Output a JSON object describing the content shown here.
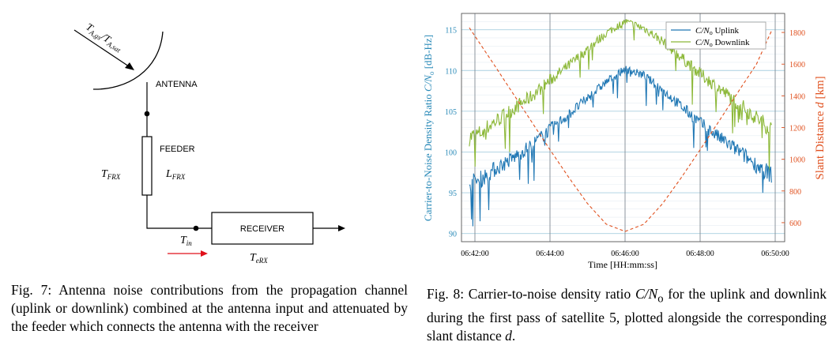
{
  "figure7": {
    "incoming_label": "T_{A,gs}/T_{A,sat}",
    "antenna_label": "ANTENNA",
    "feeder_label": "FEEDER",
    "t_frx_label": "T_{FRX}",
    "l_frx_label": "L_{FRX}",
    "receiver_label": "RECEIVER",
    "t_in_label": "T_{in}",
    "t_erx_label": "T_{eRX}",
    "caption": "Fig. 7: Antenna noise contributions from the propagation channel (uplink or downlink) combined at the antenna input and attenuated by the feeder which connects the antenna with the receiver"
  },
  "figure8": {
    "caption_prefix": "Fig. 8: Carrier-to-noise density ratio ",
    "caption_math": "C/N",
    "caption_sub": "o",
    "caption_middle": " for the uplink and downlink during the first pass of satellite 5, plotted alongside the corresponding slant distance ",
    "caption_d": "d",
    "caption_end": "."
  },
  "chart_data": {
    "type": "line",
    "xlabel": "Time [HH:mm:ss]",
    "ylabel_left": "Carrier-to-Noise Density Ratio C/N_o [dB-Hz]",
    "ylabel_right": "Slant Distance d [km]",
    "x_ticks": [
      "06:42:00",
      "06:44:00",
      "06:46:00",
      "06:48:00",
      "06:50:00"
    ],
    "x_range_min": [
      0,
      8
    ],
    "y_left_ticks": [
      90,
      95,
      100,
      105,
      110,
      115
    ],
    "y_left_range": [
      89,
      117
    ],
    "y_right_ticks": [
      600,
      800,
      1000,
      1200,
      1400,
      1600,
      1800
    ],
    "y_right_range": [
      480,
      1920
    ],
    "legend": [
      "C/N_o Uplink",
      "C/N_o Downlink"
    ],
    "colors": {
      "uplink": "#1f77b4",
      "downlink": "#8cb838",
      "distance": "#e0501e",
      "axis_right": "#e0501e",
      "axis_left": "#2a8ab8"
    },
    "series": [
      {
        "name": "C/N_o Uplink",
        "x_min": [
          -0.15,
          0.1,
          0.5,
          1.0,
          1.5,
          2.0,
          2.5,
          3.0,
          3.5,
          4.0,
          4.5,
          5.0,
          5.5,
          6.0,
          6.5,
          7.0,
          7.5,
          7.9
        ],
        "values": [
          96.2,
          96.5,
          97.8,
          99.2,
          100.8,
          102.8,
          104.6,
          106.6,
          108.6,
          110.2,
          109.4,
          107.6,
          105.6,
          103.6,
          101.8,
          100.2,
          98.4,
          97.2
        ]
      },
      {
        "name": "C/N_o Downlink",
        "x_min": [
          -0.15,
          0.1,
          0.5,
          1.0,
          1.5,
          2.0,
          2.5,
          3.0,
          3.5,
          4.0,
          4.5,
          5.0,
          5.5,
          6.0,
          6.5,
          7.0,
          7.5,
          7.9
        ],
        "values": [
          101.8,
          102.2,
          103.6,
          105.2,
          106.8,
          108.8,
          110.6,
          112.6,
          114.6,
          116.0,
          115.2,
          113.6,
          111.6,
          109.6,
          107.8,
          106.0,
          104.2,
          102.8
        ]
      },
      {
        "name": "Slant Distance",
        "x_min": [
          -0.15,
          0.5,
          1.0,
          1.5,
          2.0,
          2.5,
          3.0,
          3.5,
          4.0,
          4.5,
          5.0,
          5.5,
          6.0,
          6.5,
          7.0,
          7.5,
          7.9
        ],
        "values": [
          1830,
          1600,
          1420,
          1240,
          1060,
          885,
          720,
          590,
          545,
          590,
          720,
          885,
          1060,
          1240,
          1420,
          1600,
          1810
        ]
      }
    ]
  }
}
